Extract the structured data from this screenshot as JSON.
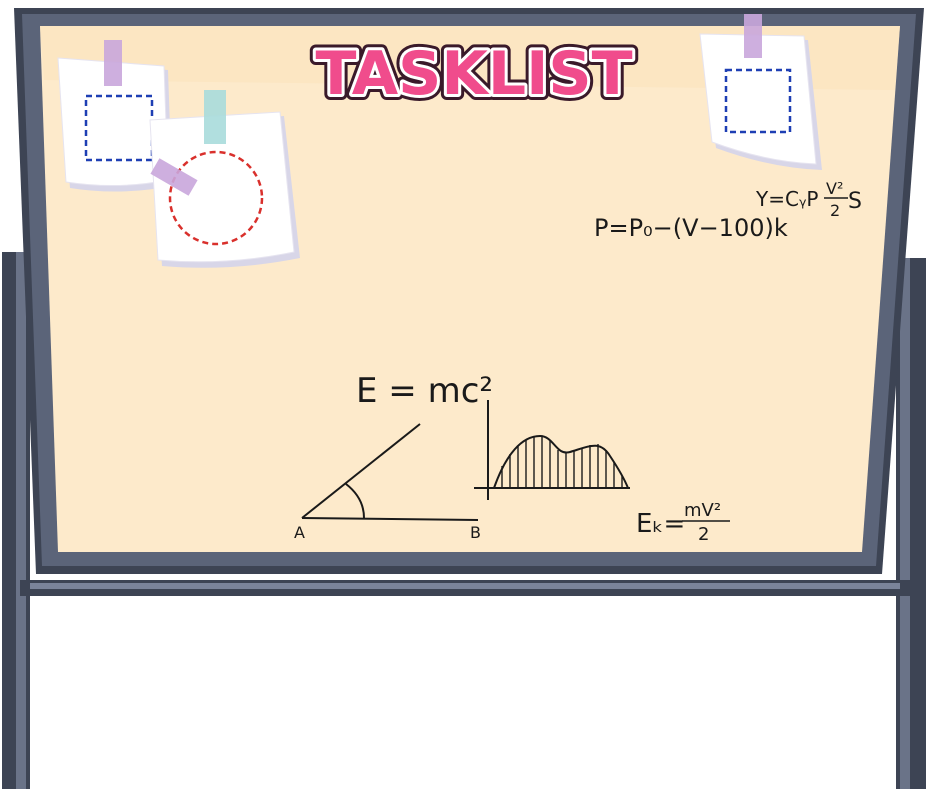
{
  "title": "TASKLIST",
  "formulas": {
    "energy": "E = mc²",
    "pressure": "P=P₀−(V−100)k",
    "lift": "Y=CᵧρV²S/2",
    "kinetic_prefix": "Eₖ=",
    "kinetic_num": "mV²",
    "kinetic_den": "2",
    "lift_prefix": "Y=CᵧP",
    "lift_num": "V²",
    "lift_den": "2",
    "lift_suffix": "S"
  },
  "diagram": {
    "point_a": "A",
    "point_b": "B"
  },
  "colors": {
    "board_fill": "#fdeacb",
    "frame": "#3d4454",
    "title_pink": "#f04c8c",
    "note_blue_dash": "#1e3fb4",
    "note_red_dash": "#d9302c",
    "tape_purple": "#c9a6dc",
    "tape_teal": "#a9dcdc"
  }
}
